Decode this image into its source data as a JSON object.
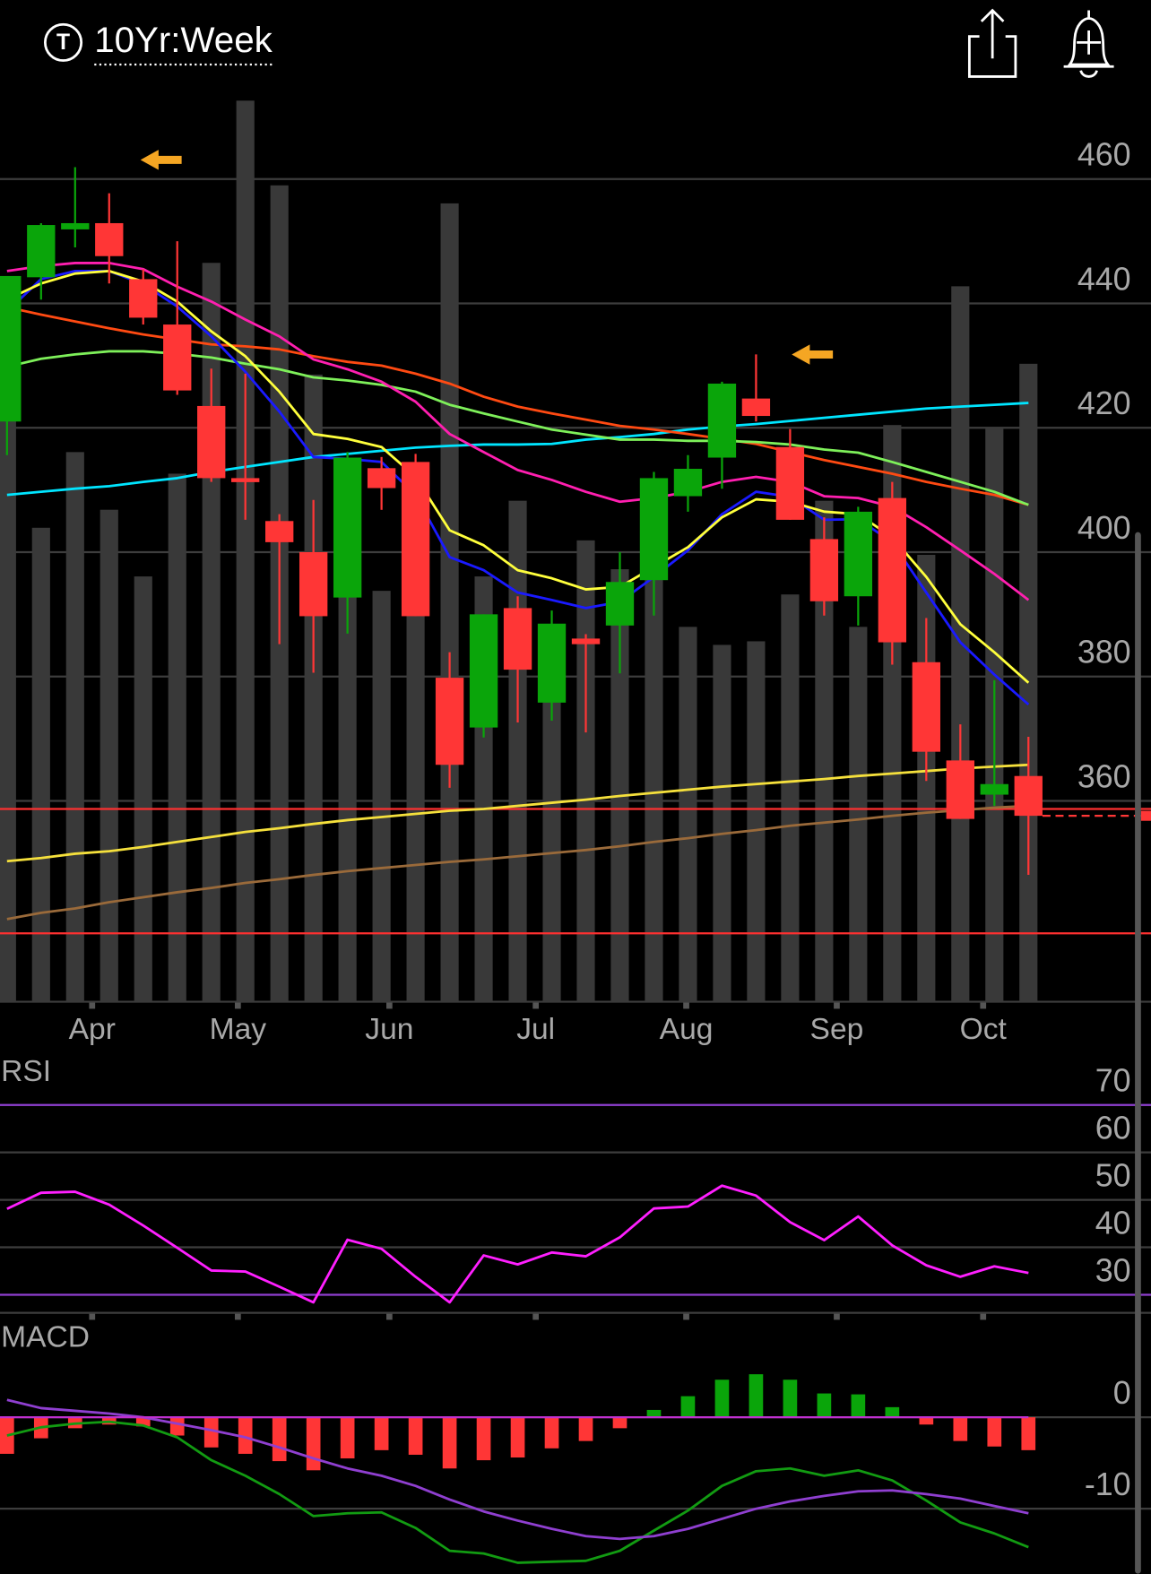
{
  "header": {
    "icon": "T",
    "title": "10Yr:Week"
  },
  "chart_data": [
    {
      "type": "candlestick",
      "x": [
        0,
        1,
        2,
        3,
        4,
        5,
        6,
        7,
        8,
        9,
        10,
        11,
        12,
        13,
        14,
        15,
        16,
        17,
        18,
        19,
        20,
        21,
        22,
        23,
        24,
        25,
        26,
        27,
        28,
        29,
        30
      ],
      "open": [
        421.0,
        444.2,
        451.9,
        452.9,
        443.9,
        436.6,
        423.5,
        411.9,
        405.0,
        400.0,
        392.7,
        413.5,
        414.5,
        379.8,
        371.8,
        391.0,
        375.8,
        386.1,
        388.2,
        395.5,
        409.0,
        415.2,
        424.7,
        416.9,
        402.1,
        392.9,
        408.7,
        382.3,
        366.5,
        361.0,
        364.0
      ],
      "high": [
        444.4,
        452.9,
        461.9,
        457.7,
        445.5,
        450.0,
        429.5,
        428.7,
        406.1,
        408.4,
        416.1,
        415.3,
        415.8,
        383.9,
        390.0,
        392.9,
        390.6,
        386.8,
        400.0,
        412.9,
        415.6,
        427.4,
        431.8,
        419.8,
        405.6,
        407.3,
        411.3,
        389.4,
        372.3,
        379.4,
        370.3
      ],
      "low": [
        415.6,
        440.6,
        449.0,
        443.2,
        436.6,
        425.3,
        411.3,
        405.2,
        385.2,
        380.6,
        386.9,
        406.8,
        389.7,
        362.1,
        370.2,
        372.6,
        372.9,
        371.0,
        380.5,
        389.8,
        406.5,
        410.2,
        421.0,
        405.2,
        389.8,
        388.2,
        381.9,
        363.2,
        357.1,
        359.2,
        348.1
      ],
      "close": [
        444.4,
        452.6,
        452.9,
        447.6,
        437.7,
        426.0,
        411.9,
        411.3,
        401.6,
        389.7,
        415.2,
        410.3,
        389.7,
        365.8,
        390.0,
        381.1,
        388.5,
        385.2,
        395.2,
        411.9,
        413.4,
        427.1,
        421.9,
        405.2,
        392.1,
        406.5,
        385.5,
        367.9,
        357.1,
        362.7,
        357.6
      ],
      "up_color": "#0aa50a",
      "down_color": "#ff3636",
      "xlim": [
        -0.206,
        33.6
      ],
      "xticks": [
        {
          "value": 2.5,
          "label": "Apr"
        },
        {
          "value": 6.78,
          "label": "May"
        },
        {
          "value": 11.23,
          "label": "Jun"
        },
        {
          "value": 15.53,
          "label": "Jul"
        },
        {
          "value": 19.95,
          "label": "Aug"
        },
        {
          "value": 24.37,
          "label": "Sep"
        },
        {
          "value": 28.67,
          "label": "Oct"
        }
      ],
      "ylim": [
        327.7,
        472.6
      ],
      "yticks": [
        360,
        380,
        400,
        420,
        440,
        460
      ],
      "grid": true,
      "volume": {
        "color": "#393939",
        "ylim": [
          0,
          500
        ],
        "values": [
          380,
          263,
          305,
          273,
          236,
          293,
          410,
          500,
          453,
          348,
          292,
          228,
          274,
          443,
          236,
          278,
          198,
          256,
          240,
          239,
          208,
          198,
          200,
          226,
          278,
          208,
          320,
          248,
          397,
          318,
          354
        ]
      },
      "hlines": [
        {
          "value": 358.7,
          "color": "#ff3030"
        },
        {
          "value": 338.7,
          "color": "#ff3030"
        }
      ],
      "series": [
        {
          "color": "#00e5ff",
          "values": [
            409.2,
            409.7,
            410.2,
            410.6,
            411.3,
            411.9,
            412.9,
            413.7,
            414.5,
            415.3,
            415.8,
            416.3,
            416.8,
            417.1,
            417.3,
            417.3,
            417.4,
            418.1,
            418.5,
            419.0,
            419.7,
            420.2,
            420.6,
            421.1,
            421.6,
            422.1,
            422.6,
            423.1,
            423.4,
            423.7,
            424.0
          ]
        },
        {
          "color": "#ff4a12",
          "values": [
            439.4,
            438.2,
            437.1,
            436.0,
            435.0,
            434.2,
            433.4,
            433.1,
            432.6,
            431.5,
            430.6,
            430.0,
            428.7,
            427.1,
            425.0,
            423.4,
            422.3,
            421.3,
            420.3,
            419.7,
            419.0,
            418.2,
            417.4,
            416.1,
            414.8,
            413.7,
            412.6,
            411.3,
            410.2,
            409.2,
            407.6
          ]
        },
        {
          "color": "#7ef05a",
          "values": [
            429.8,
            431.1,
            431.8,
            432.3,
            432.3,
            431.9,
            431.3,
            430.3,
            429.4,
            428.1,
            427.6,
            426.9,
            425.8,
            423.7,
            422.3,
            421.0,
            419.7,
            418.9,
            418.1,
            418.1,
            417.9,
            417.9,
            417.7,
            417.3,
            416.5,
            416.0,
            414.5,
            412.9,
            411.3,
            409.7,
            407.6
          ]
        },
        {
          "color": "#ff1fb0",
          "values": [
            445.2,
            446.0,
            446.5,
            446.5,
            445.5,
            442.7,
            440.3,
            437.4,
            434.7,
            431.0,
            429.4,
            427.4,
            424.2,
            419.0,
            416.1,
            413.2,
            411.6,
            409.7,
            408.1,
            408.7,
            409.7,
            411.3,
            412.1,
            411.3,
            409.0,
            408.7,
            407.3,
            404.0,
            400.3,
            396.5,
            392.3
          ]
        },
        {
          "color": "#1a1aff",
          "values": [
            438.7,
            443.9,
            445.2,
            445.2,
            443.1,
            439.5,
            434.7,
            429.0,
            422.6,
            415.3,
            415.0,
            414.5,
            409.2,
            399.2,
            397.1,
            393.5,
            392.3,
            391.0,
            392.0,
            396.0,
            400.3,
            406.1,
            409.7,
            408.9,
            405.2,
            405.3,
            401.6,
            393.5,
            385.5,
            380.3,
            375.5
          ]
        },
        {
          "color": "#ffff3c",
          "values": [
            440.6,
            443.2,
            444.8,
            445.2,
            443.5,
            440.3,
            435.5,
            431.5,
            425.8,
            419.0,
            418.2,
            416.9,
            412.1,
            403.5,
            401.1,
            397.1,
            395.8,
            394.0,
            394.4,
            397.6,
            400.8,
            405.6,
            408.5,
            408.1,
            406.5,
            406.1,
            402.4,
            396.0,
            388.4,
            383.9,
            379.0
          ]
        },
        {
          "color": "#f5e03c",
          "values": [
            350.3,
            350.8,
            351.5,
            351.9,
            352.6,
            353.4,
            354.2,
            355.0,
            355.6,
            356.3,
            356.9,
            357.4,
            357.9,
            358.4,
            358.7,
            359.2,
            359.7,
            360.2,
            360.8,
            361.3,
            361.8,
            362.3,
            362.7,
            363.1,
            363.5,
            364.0,
            364.4,
            364.8,
            365.2,
            365.5,
            365.8
          ]
        },
        {
          "color": "#9a6a3a",
          "values": [
            341.0,
            342.0,
            342.7,
            343.7,
            344.5,
            345.3,
            346.0,
            346.8,
            347.4,
            348.1,
            348.7,
            349.2,
            349.7,
            350.2,
            350.6,
            351.1,
            351.6,
            352.1,
            352.7,
            353.4,
            354.0,
            354.7,
            355.3,
            356.0,
            356.5,
            357.0,
            357.6,
            358.1,
            358.5,
            358.9,
            359.2
          ]
        }
      ]
    },
    {
      "type": "line",
      "title": "RSI",
      "x": [
        0,
        1,
        2,
        3,
        4,
        5,
        6,
        7,
        8,
        9,
        10,
        11,
        12,
        13,
        14,
        15,
        16,
        17,
        18,
        19,
        20,
        21,
        22,
        23,
        24,
        25,
        26,
        27,
        28,
        29,
        30
      ],
      "values": [
        48.1,
        51.5,
        51.7,
        49.0,
        44.6,
        39.9,
        35.1,
        34.9,
        31.7,
        28.4,
        41.6,
        39.7,
        33.8,
        28.4,
        38.3,
        36.4,
        38.9,
        38.1,
        42.1,
        48.2,
        48.6,
        53.0,
        50.9,
        45.3,
        41.5,
        46.5,
        40.4,
        36.2,
        33.8,
        36.0,
        34.6
      ],
      "color": "#ff1fff",
      "ylim": [
        26.2,
        79.7
      ],
      "yticks": [
        30,
        40,
        50,
        60,
        70
      ],
      "bands": {
        "upper": 70,
        "lower": 30,
        "color": "#8f3fd0"
      }
    },
    {
      "type": "macd",
      "title": "MACD",
      "x": [
        0,
        1,
        2,
        3,
        4,
        5,
        6,
        7,
        8,
        9,
        10,
        11,
        12,
        13,
        14,
        15,
        16,
        17,
        18,
        19,
        20,
        21,
        22,
        23,
        24,
        25,
        26,
        27,
        28,
        29,
        30
      ],
      "histogram": [
        -4.0,
        -2.3,
        -1.2,
        -0.8,
        -1.0,
        -2.0,
        -3.3,
        -4.0,
        -4.8,
        -5.8,
        -4.5,
        -3.6,
        -4.1,
        -5.6,
        -4.7,
        -4.4,
        -3.4,
        -2.6,
        -1.2,
        0.8,
        2.3,
        4.1,
        4.7,
        4.1,
        2.6,
        2.5,
        1.1,
        -0.8,
        -2.6,
        -3.2,
        -3.6
      ],
      "series": [
        {
          "color": "#129b12",
          "values": [
            -2.0,
            -1.1,
            -0.7,
            -0.5,
            -0.9,
            -2.2,
            -4.7,
            -6.4,
            -8.4,
            -10.8,
            -10.5,
            -10.4,
            -12.1,
            -14.6,
            -14.9,
            -15.9,
            -15.8,
            -15.7,
            -14.6,
            -12.4,
            -10.2,
            -7.5,
            -5.9,
            -5.6,
            -6.4,
            -5.8,
            -6.9,
            -9.1,
            -11.5,
            -12.7,
            -14.2
          ]
        },
        {
          "color": "#8f3fd0",
          "values": [
            1.9,
            1.0,
            0.7,
            0.4,
            0.0,
            -0.7,
            -1.4,
            -2.2,
            -3.3,
            -4.5,
            -5.6,
            -6.4,
            -7.5,
            -9.0,
            -10.3,
            -11.3,
            -12.2,
            -13.0,
            -13.3,
            -13.0,
            -12.2,
            -11.1,
            -10.0,
            -9.2,
            -8.6,
            -8.1,
            -8.0,
            -8.4,
            -8.9,
            -9.7,
            -10.5
          ]
        }
      ],
      "up_color": "#0aa50a",
      "down_color": "#ff3636",
      "ylim": [
        -17.1,
        10.1
      ],
      "yticks": [
        -10,
        0
      ],
      "zero_color": "#c030d0"
    }
  ]
}
